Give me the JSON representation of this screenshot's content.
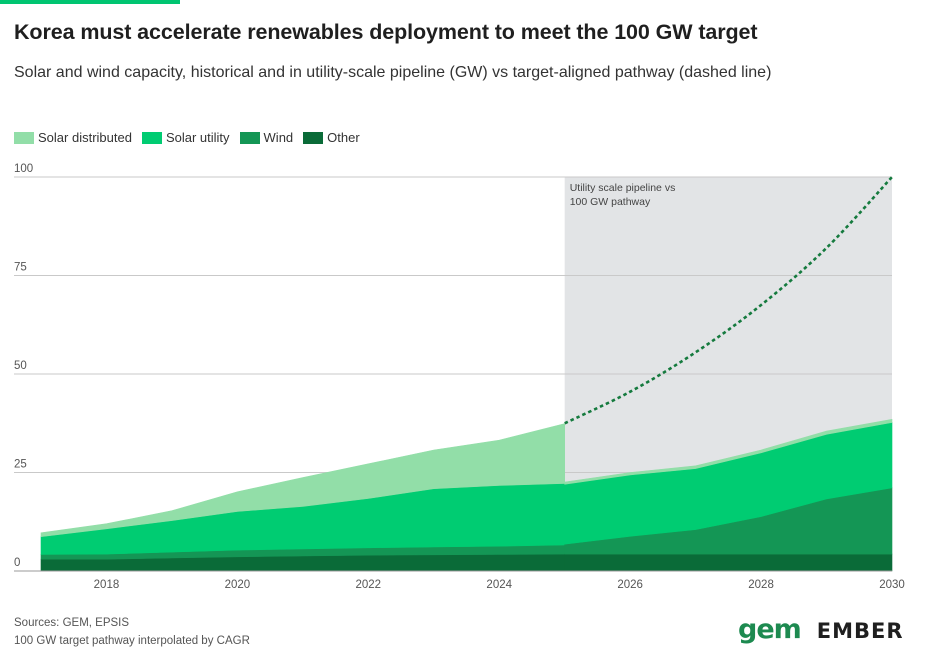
{
  "header": {
    "title": "Korea must accelerate renewables deployment to meet the 100 GW target",
    "subtitle": "Solar and wind capacity, historical and in utility-scale pipeline (GW) vs target-aligned pathway (dashed line)"
  },
  "colors": {
    "solar_distributed": "#92dea8",
    "solar_utility": "#00cc72",
    "wind": "#149655",
    "other": "#0a6b38",
    "pathway": "#157a3e",
    "shade": "#e2e4e6",
    "grid": "#c9c9c9"
  },
  "footer": {
    "sources": "Sources: GEM, EPSIS",
    "note": "100 GW target pathway interpolated by CAGR"
  },
  "logos": {
    "gem": "gem",
    "ember": "EMBER"
  },
  "chart_data": {
    "type": "area",
    "stacked": true,
    "annotation": "Utility scale pipeline vs 100 GW pathway",
    "shaded_region": [
      2025,
      2030
    ],
    "ylim": [
      0,
      100
    ],
    "xlim": [
      2017,
      2030
    ],
    "y_ticks": [
      0,
      25,
      50,
      75,
      100
    ],
    "x_ticks": [
      2018,
      2020,
      2022,
      2024,
      2026,
      2028,
      2030
    ],
    "grid": true,
    "legend_position": "top-left",
    "historical": {
      "x": [
        2017,
        2018,
        2019,
        2020,
        2021,
        2022,
        2023,
        2024,
        2025
      ],
      "series": [
        {
          "name": "Other",
          "key": "other",
          "values": [
            3.0,
            3.0,
            3.3,
            3.6,
            3.8,
            4.0,
            4.1,
            4.2,
            4.3
          ]
        },
        {
          "name": "Wind",
          "key": "wind",
          "values": [
            1.2,
            1.3,
            1.5,
            1.7,
            1.8,
            1.9,
            2.0,
            2.1,
            2.3
          ]
        },
        {
          "name": "Solar utility",
          "key": "solar_utility",
          "values": [
            4.5,
            6.4,
            8.0,
            9.8,
            10.8,
            12.5,
            14.8,
            15.4,
            15.6
          ]
        },
        {
          "name": "Solar distributed",
          "key": "solar_distributed",
          "values": [
            1.0,
            1.3,
            2.5,
            5.0,
            7.3,
            8.8,
            9.8,
            11.5,
            15.2
          ]
        }
      ]
    },
    "pipeline": {
      "x": [
        2025,
        2026,
        2027,
        2028,
        2029,
        2030
      ],
      "series": [
        {
          "name": "Other",
          "key": "other",
          "values": [
            4.3,
            4.3,
            4.3,
            4.3,
            4.3,
            4.3
          ]
        },
        {
          "name": "Wind",
          "key": "wind",
          "values": [
            2.5,
            4.5,
            6.2,
            9.5,
            14.0,
            16.8
          ]
        },
        {
          "name": "Solar utility",
          "key": "solar_utility",
          "values": [
            15.2,
            15.6,
            15.5,
            16.2,
            16.4,
            16.6
          ]
        },
        {
          "name": "Solar distributed",
          "key": "solar_distributed",
          "values": [
            0.6,
            0.6,
            0.7,
            0.7,
            0.8,
            0.8
          ]
        }
      ]
    },
    "pathway": {
      "name": "Target-aligned pathway",
      "x": [
        2025,
        2026,
        2027,
        2028,
        2029,
        2030
      ],
      "values": [
        37.5,
        45.5,
        55.5,
        67.5,
        82.0,
        100.0
      ]
    },
    "legend": [
      {
        "label": "Solar distributed",
        "key": "solar_distributed"
      },
      {
        "label": "Solar utility",
        "key": "solar_utility"
      },
      {
        "label": "Wind",
        "key": "wind"
      },
      {
        "label": "Other",
        "key": "other"
      }
    ]
  }
}
